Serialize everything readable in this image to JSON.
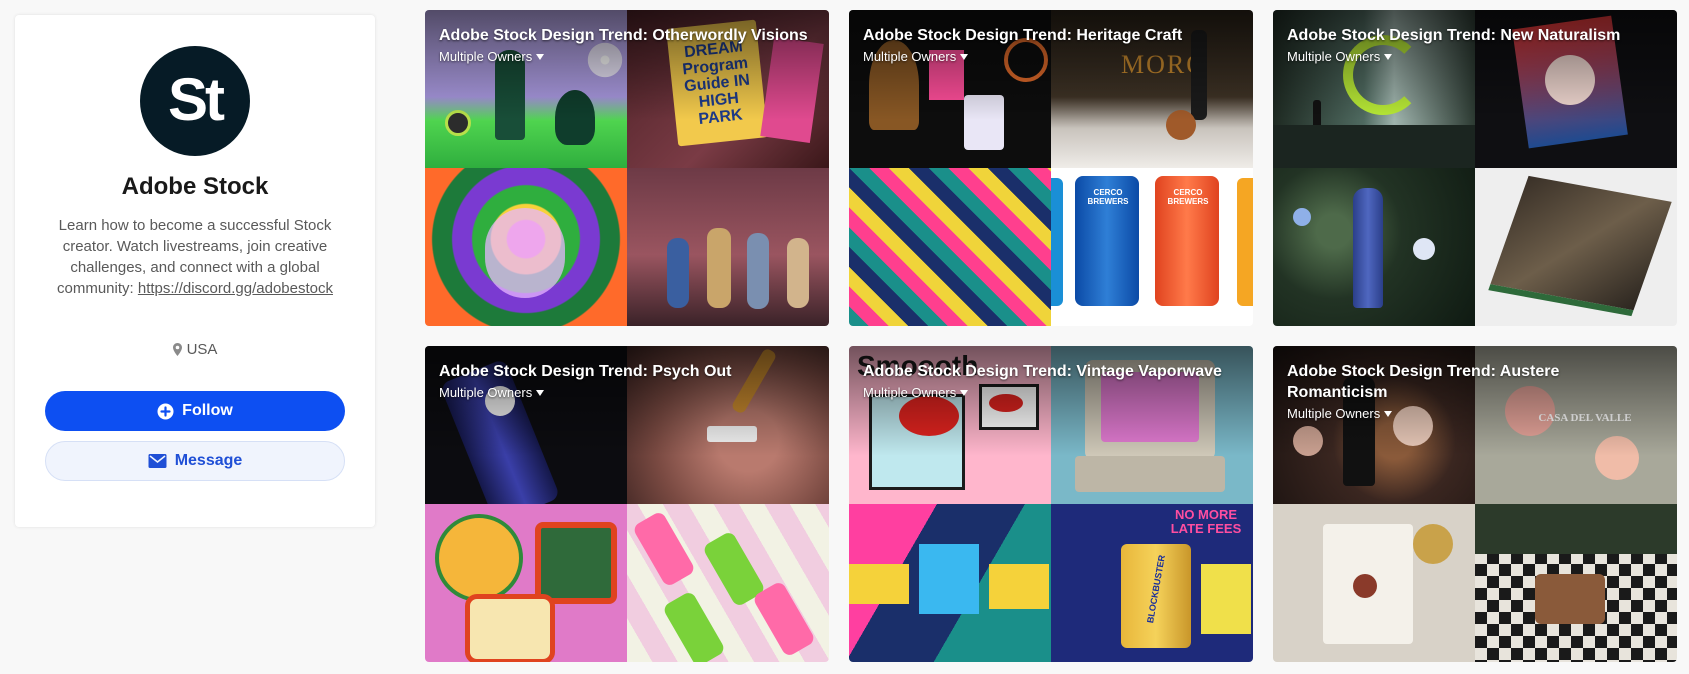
{
  "profile": {
    "avatar_text": "St",
    "name": "Adobe Stock",
    "bio": "Learn how to become a successful Stock creator. Watch livestreams, join creative challenges, and connect with a global community:",
    "link": "https://discord.gg/adobestock",
    "location": "USA",
    "location_icon": "map-pin-icon",
    "follow_label": "Follow",
    "follow_icon": "plus-circle-icon",
    "message_label": "Message",
    "message_icon": "envelope-icon"
  },
  "projects": [
    {
      "title": "Adobe Stock Design Trend: Otherwordly Visions",
      "owners": "Multiple Owners"
    },
    {
      "title": "Adobe Stock Design Trend: Heritage Craft",
      "owners": "Multiple Owners"
    },
    {
      "title": "Adobe Stock Design Trend: New Naturalism",
      "owners": "Multiple Owners"
    },
    {
      "title": "Adobe Stock Design Trend: Psych Out",
      "owners": "Multiple Owners"
    },
    {
      "title": "Adobe Stock Design Trend: Vintage Vaporwave",
      "owners": "Multiple Owners"
    },
    {
      "title": "Adobe Stock Design Trend: Austere Romanticism",
      "owners": "Multiple Owners"
    }
  ],
  "cover_texts": {
    "dream_poster": "DREAM Program Guide IN HIGH PARK",
    "moro_sign": "MORO",
    "can_left": "CERCO BREWERS",
    "can_right": "CERCO BREWERS",
    "smooth_text": "Smoooth",
    "no_more": "NO MORE LATE FEES",
    "blockbuster": "BLOCKBUSTER",
    "casa": "CASA DEL VALLE"
  },
  "colors": {
    "accent": "#0d4ff2",
    "avatar_bg": "#061b26",
    "page_bg": "#f8f8f8"
  }
}
